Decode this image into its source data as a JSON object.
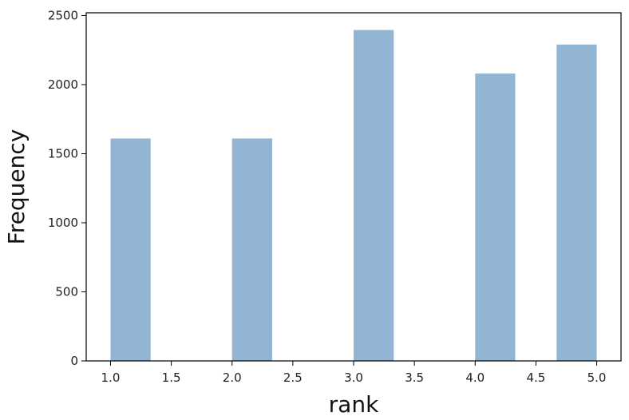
{
  "chart_data": {
    "type": "bar",
    "chart_kind": "histogram",
    "xlabel": "rank",
    "ylabel": "Frequency",
    "xlim": [
      0.8,
      5.2
    ],
    "ylim": [
      0,
      2520
    ],
    "x_ticks": [
      1.0,
      1.5,
      2.0,
      2.5,
      3.0,
      3.5,
      4.0,
      4.5,
      5.0
    ],
    "x_tick_labels": [
      "1.0",
      "1.5",
      "2.0",
      "2.5",
      "3.0",
      "3.5",
      "4.0",
      "4.5",
      "5.0"
    ],
    "y_ticks": [
      0,
      500,
      1000,
      1500,
      2000,
      2500
    ],
    "y_tick_labels": [
      "0",
      "500",
      "1000",
      "1500",
      "2000",
      "2500"
    ],
    "bars": [
      {
        "x_start": 1.0,
        "x_end": 1.33,
        "value": 1610
      },
      {
        "x_start": 2.0,
        "x_end": 2.33,
        "value": 1610
      },
      {
        "x_start": 3.0,
        "x_end": 3.33,
        "value": 2395
      },
      {
        "x_start": 4.0,
        "x_end": 4.33,
        "value": 2080
      },
      {
        "x_start": 4.67,
        "x_end": 5.0,
        "value": 2290
      }
    ],
    "bar_color": "#93b5d4",
    "grid": false,
    "legend": "none"
  }
}
